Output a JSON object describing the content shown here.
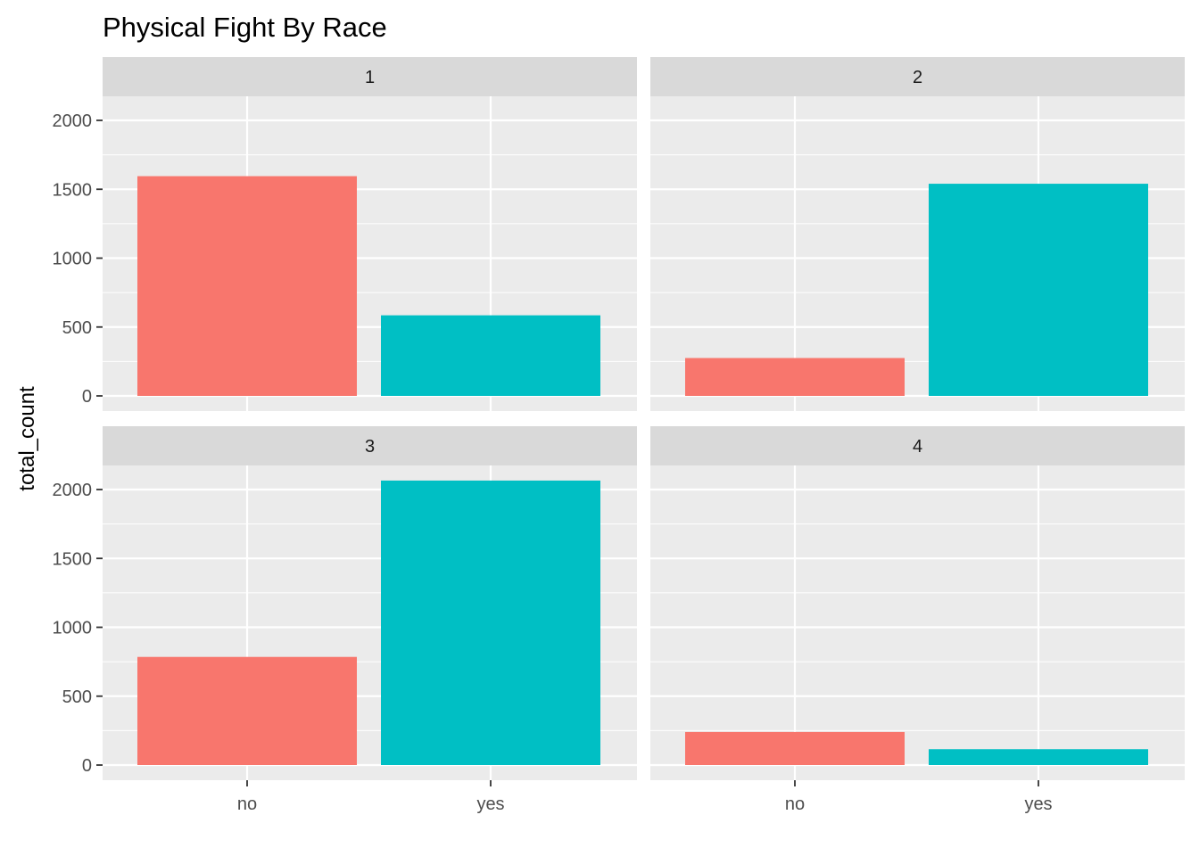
{
  "chart_data": {
    "type": "bar",
    "title": "Physical Fight By Race",
    "ylabel": "total_count",
    "xlabel": "",
    "categories": [
      "no",
      "yes"
    ],
    "ylim": [
      0,
      2000
    ],
    "y_ticks": [
      0,
      500,
      1000,
      1500,
      2000
    ],
    "y_tick_labels": [
      "0",
      "500",
      "1000",
      "1500",
      "2000"
    ],
    "grid": true,
    "facet_layout": "2x2",
    "colors": {
      "no": "#F8766D",
      "yes": "#00BFC4",
      "panel_background": "#EBEBEB",
      "strip_background": "#D9D9D9",
      "grid": "#FFFFFF"
    },
    "facets": [
      {
        "label": "1",
        "values": [
          1595,
          585
        ]
      },
      {
        "label": "2",
        "values": [
          275,
          1540
        ]
      },
      {
        "label": "3",
        "values": [
          785,
          2065
        ]
      },
      {
        "label": "4",
        "values": [
          240,
          115
        ]
      }
    ]
  }
}
